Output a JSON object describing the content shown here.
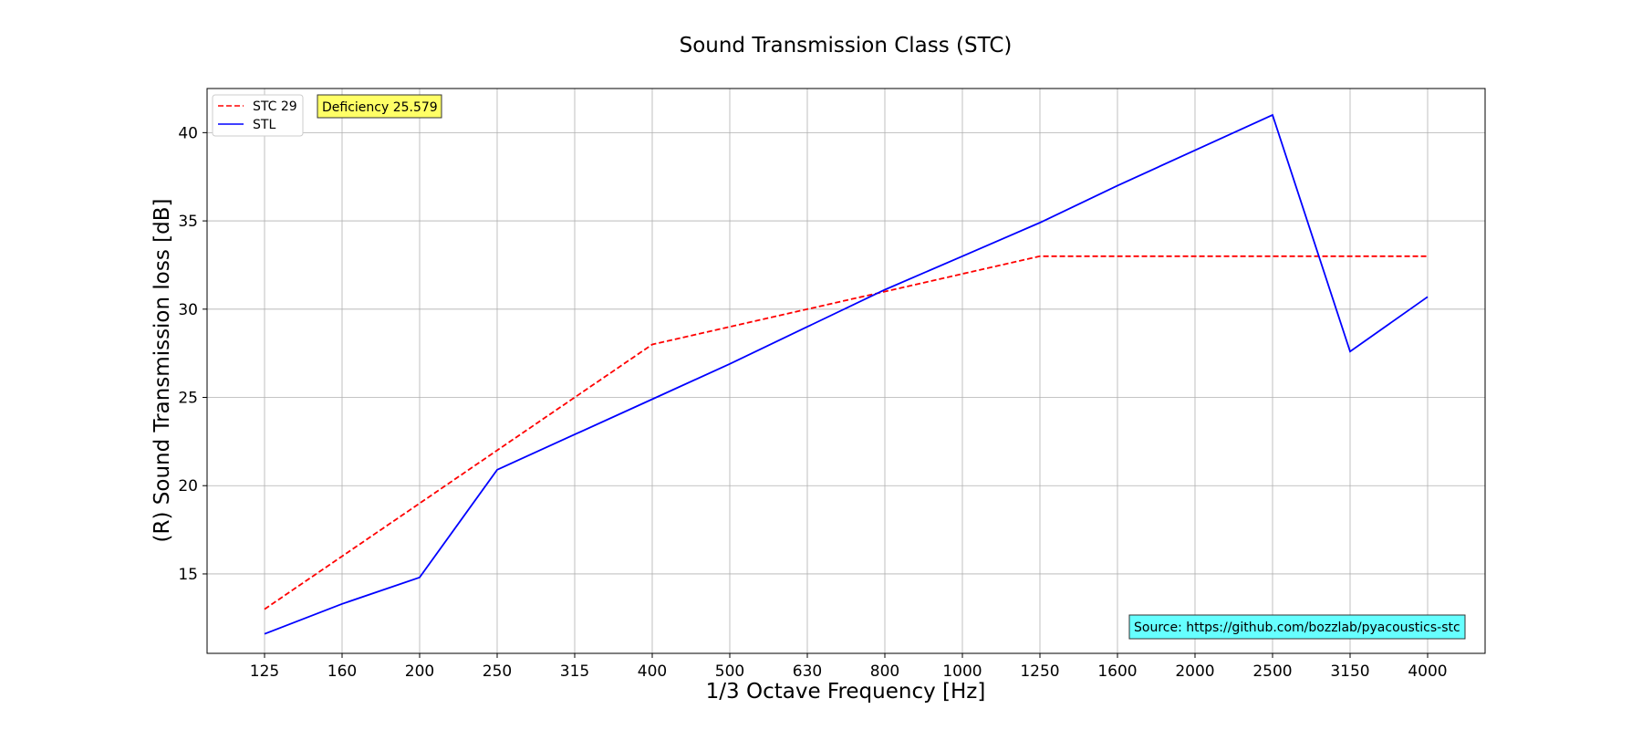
{
  "chart_data": {
    "type": "line",
    "title": "Sound Transmission Class (STC)",
    "xlabel": "1/3 Octave Frequency [Hz]",
    "ylabel": "(R) Sound Transmission loss [dB]",
    "categories": [
      "125",
      "160",
      "200",
      "250",
      "315",
      "400",
      "500",
      "630",
      "800",
      "1000",
      "1250",
      "1600",
      "2000",
      "2500",
      "3150",
      "4000"
    ],
    "yticks": [
      15,
      20,
      25,
      30,
      35,
      40
    ],
    "ylim": [
      10.5,
      42.5
    ],
    "grid": true,
    "legend_position": "top-left",
    "series": [
      {
        "name": "STC 29",
        "color": "#ff0000",
        "style": "dashed",
        "values": [
          13,
          16,
          19,
          22,
          25,
          28,
          29,
          30,
          31,
          32,
          33,
          33,
          33,
          33,
          33,
          33
        ]
      },
      {
        "name": "STL",
        "color": "#0000ff",
        "style": "solid",
        "values": [
          11.6,
          13.3,
          14.8,
          20.9,
          22.9,
          24.9,
          26.9,
          29.0,
          31.1,
          33.0,
          34.9,
          37.0,
          39.0,
          41.0,
          27.6,
          30.7
        ]
      }
    ],
    "annotations": {
      "deficiency": {
        "text": "Deficiency 25.579",
        "color": "#ffff66"
      },
      "source": {
        "text": "Source: https://github.com/bozzlab/pyacoustics-stc",
        "color": "#66ffff"
      }
    }
  }
}
